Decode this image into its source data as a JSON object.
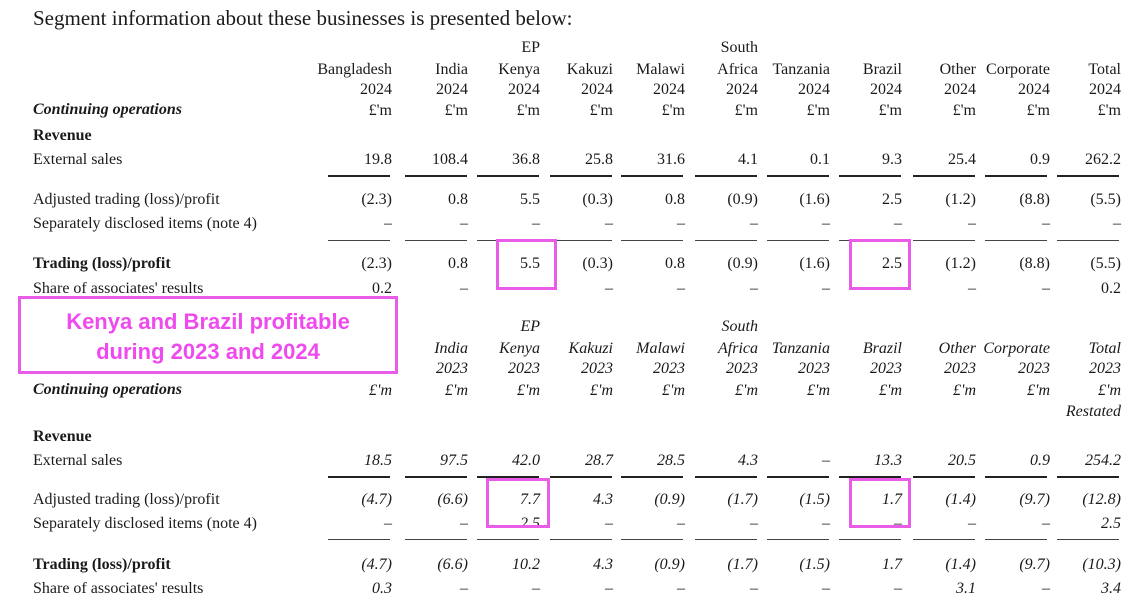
{
  "heading": "Segment information about these businesses is presented below:",
  "callout": {
    "line1": "Kenya and Brazil profitable",
    "line2": "during 2023 and 2024"
  },
  "table_2024": {
    "columns": [
      {
        "l1": "",
        "l2": "Bangladesh",
        "year": "2024",
        "unit": "£'m"
      },
      {
        "l1": "",
        "l2": "India",
        "year": "2024",
        "unit": "£'m"
      },
      {
        "l1": "EP",
        "l2": "Kenya",
        "year": "2024",
        "unit": "£'m"
      },
      {
        "l1": "",
        "l2": "Kakuzi",
        "year": "2024",
        "unit": "£'m"
      },
      {
        "l1": "",
        "l2": "Malawi",
        "year": "2024",
        "unit": "£'m"
      },
      {
        "l1": "South",
        "l2": "Africa",
        "year": "2024",
        "unit": "£'m"
      },
      {
        "l1": "",
        "l2": "Tanzania",
        "year": "2024",
        "unit": "£'m"
      },
      {
        "l1": "",
        "l2": "Brazil",
        "year": "2024",
        "unit": "£'m"
      },
      {
        "l1": "",
        "l2": "Other",
        "year": "2024",
        "unit": "£'m"
      },
      {
        "l1": "",
        "l2": "Corporate",
        "year": "2024",
        "unit": "£'m"
      },
      {
        "l1": "",
        "l2": "Total",
        "year": "2024",
        "unit": "£'m"
      }
    ],
    "section_label": "Continuing operations",
    "revenue_label": "Revenue",
    "rows": {
      "external_sales": {
        "label": "External sales",
        "values": [
          "19.8",
          "108.4",
          "36.8",
          "25.8",
          "31.6",
          "4.1",
          "0.1",
          "9.3",
          "25.4",
          "0.9",
          "262.2"
        ]
      },
      "adjusted": {
        "label": "Adjusted trading (loss)/profit",
        "values": [
          "(2.3)",
          "0.8",
          "5.5",
          "(0.3)",
          "0.8",
          "(0.9)",
          "(1.6)",
          "2.5",
          "(1.2)",
          "(8.8)",
          "(5.5)"
        ]
      },
      "separately": {
        "label": "Separately disclosed items (note 4)",
        "values": [
          "–",
          "–",
          "–",
          "–",
          "–",
          "–",
          "–",
          "–",
          "–",
          "–",
          "–"
        ]
      },
      "trading": {
        "label": "Trading (loss)/profit",
        "values": [
          "(2.3)",
          "0.8",
          "5.5",
          "(0.3)",
          "0.8",
          "(0.9)",
          "(1.6)",
          "2.5",
          "(1.2)",
          "(8.8)",
          "(5.5)"
        ]
      },
      "associates": {
        "label": "Share of associates' results",
        "values": [
          "0.2",
          "–",
          "–",
          "–",
          "–",
          "–",
          "–",
          "–",
          "–",
          "–",
          "0.2"
        ]
      }
    }
  },
  "table_2023": {
    "columns": [
      {
        "l1": "",
        "l2": "",
        "year": "",
        "unit": "£'m"
      },
      {
        "l1": "",
        "l2": "India",
        "year": "2023",
        "unit": "£'m"
      },
      {
        "l1": "EP",
        "l2": "Kenya",
        "year": "2023",
        "unit": "£'m"
      },
      {
        "l1": "",
        "l2": "Kakuzi",
        "year": "2023",
        "unit": "£'m"
      },
      {
        "l1": "",
        "l2": "Malawi",
        "year": "2023",
        "unit": "£'m"
      },
      {
        "l1": "South",
        "l2": "Africa",
        "year": "2023",
        "unit": "£'m"
      },
      {
        "l1": "",
        "l2": "Tanzania",
        "year": "2023",
        "unit": "£'m"
      },
      {
        "l1": "",
        "l2": "Brazil",
        "year": "2023",
        "unit": "£'m"
      },
      {
        "l1": "",
        "l2": "Other",
        "year": "2023",
        "unit": "£'m"
      },
      {
        "l1": "",
        "l2": "Corporate",
        "year": "2023",
        "unit": "£'m"
      },
      {
        "l1": "",
        "l2": "Total",
        "year": "2023",
        "unit": "£'m"
      }
    ],
    "total_note": "Restated",
    "section_label": "Continuing operations",
    "revenue_label": "Revenue",
    "rows": {
      "external_sales": {
        "label": "External sales",
        "values": [
          "18.5",
          "97.5",
          "42.0",
          "28.7",
          "28.5",
          "4.3",
          "–",
          "13.3",
          "20.5",
          "0.9",
          "254.2"
        ]
      },
      "adjusted": {
        "label": "Adjusted trading (loss)/profit",
        "values": [
          "(4.7)",
          "(6.6)",
          "7.7",
          "4.3",
          "(0.9)",
          "(1.7)",
          "(1.5)",
          "1.7",
          "(1.4)",
          "(9.7)",
          "(12.8)"
        ]
      },
      "separately": {
        "label": "Separately disclosed items (note 4)",
        "values": [
          "–",
          "–",
          "2.5",
          "–",
          "–",
          "–",
          "–",
          "–",
          "–",
          "–",
          "2.5"
        ]
      },
      "trading": {
        "label": "Trading (loss)/profit",
        "values": [
          "(4.7)",
          "(6.6)",
          "10.2",
          "4.3",
          "(0.9)",
          "(1.7)",
          "(1.5)",
          "1.7",
          "(1.4)",
          "(9.7)",
          "(10.3)"
        ]
      },
      "associates": {
        "label": "Share of associates' results",
        "values": [
          "0.3",
          "–",
          "–",
          "–",
          "–",
          "–",
          "–",
          "–",
          "3.1",
          "–",
          "3.4"
        ]
      }
    }
  },
  "highlight_color": "#e85ce8"
}
